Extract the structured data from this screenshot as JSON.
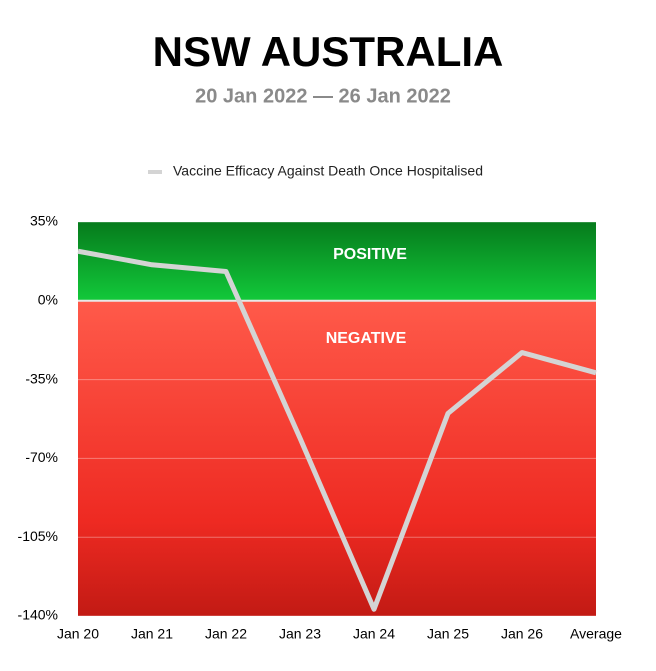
{
  "chart_data": {
    "type": "line",
    "title": "NSW AUSTRALIA",
    "subtitle": "20 Jan 2022 — 26 Jan 2022",
    "categories": [
      "Jan 20",
      "Jan 21",
      "Jan 22",
      "Jan 23",
      "Jan 24",
      "Jan 25",
      "Jan 26",
      "Average"
    ],
    "series": [
      {
        "name": "Vaccine Efficacy Against Death Once Hospitalised",
        "color": "#d4d4d4",
        "values": [
          22,
          16,
          13,
          -61,
          -137,
          -50,
          -23,
          -32
        ]
      }
    ],
    "ylim": [
      -140,
      35
    ],
    "yticks": [
      {
        "value": 35,
        "label": "35%"
      },
      {
        "value": 0,
        "label": "0%"
      },
      {
        "value": -35,
        "label": "-35%"
      },
      {
        "value": -70,
        "label": "-70%"
      },
      {
        "value": -105,
        "label": "-105%"
      },
      {
        "value": -140,
        "label": "-140%"
      }
    ],
    "annotations": [
      "POSITIVE",
      "NEGATIVE"
    ],
    "grid": true
  }
}
